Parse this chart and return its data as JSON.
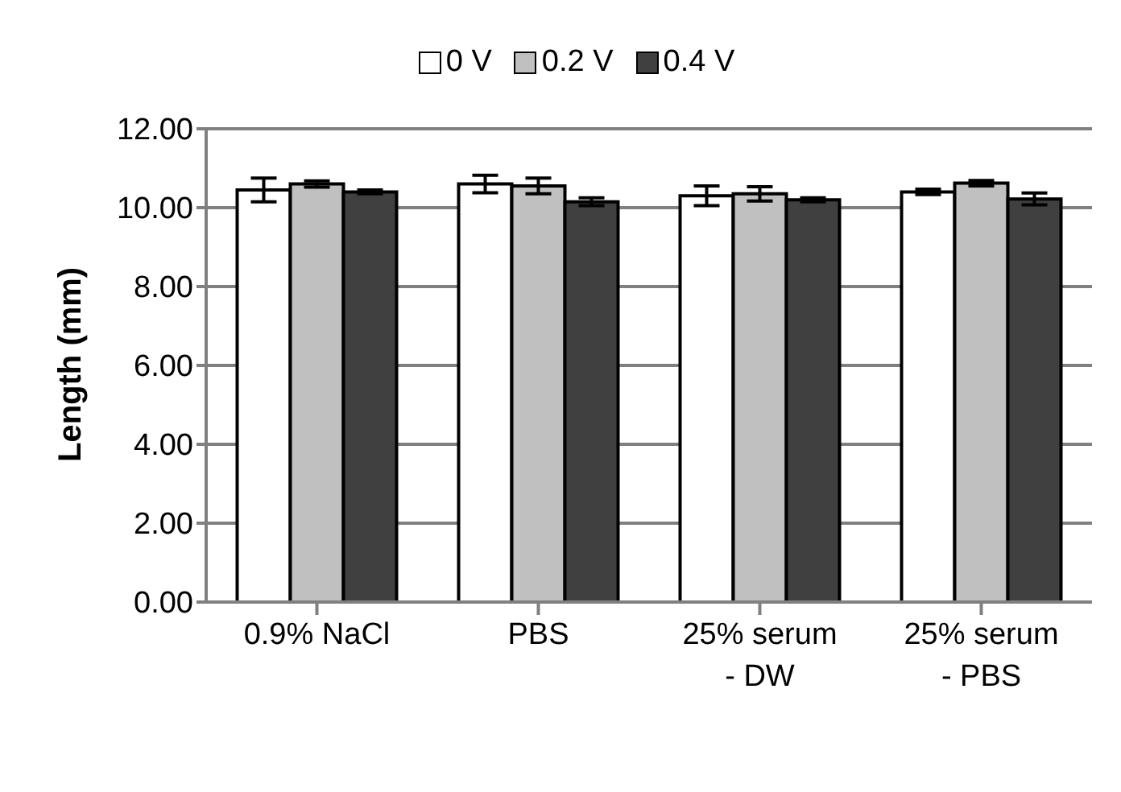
{
  "chart_data": {
    "type": "bar",
    "ylabel": "Length (mm)",
    "categories": [
      "0.9% NaCl",
      "PBS",
      "25% serum - DW",
      "25% serum - PBS"
    ],
    "series": [
      {
        "name": "0 V",
        "color": "#ffffff",
        "values": [
          10.45,
          10.6,
          10.3,
          10.4
        ],
        "errors": [
          0.3,
          0.22,
          0.25,
          0.07
        ]
      },
      {
        "name": "0.2 V",
        "color": "#c0c0c0",
        "values": [
          10.6,
          10.55,
          10.35,
          10.62
        ],
        "errors": [
          0.08,
          0.2,
          0.18,
          0.07
        ]
      },
      {
        "name": "0.4 V",
        "color": "#404040",
        "values": [
          10.4,
          10.15,
          10.2,
          10.22
        ],
        "errors": [
          0.05,
          0.1,
          0.05,
          0.15
        ]
      }
    ],
    "ylim": [
      0,
      12
    ],
    "yticks": [
      {
        "value": 0,
        "label": "0.00"
      },
      {
        "value": 2,
        "label": "2.00"
      },
      {
        "value": 4,
        "label": "4.00"
      },
      {
        "value": 6,
        "label": "6.00"
      },
      {
        "value": 8,
        "label": "8.00"
      },
      {
        "value": 10,
        "label": "10.00"
      },
      {
        "value": 12,
        "label": "12.00"
      }
    ],
    "grid": "y",
    "legend": "top"
  }
}
